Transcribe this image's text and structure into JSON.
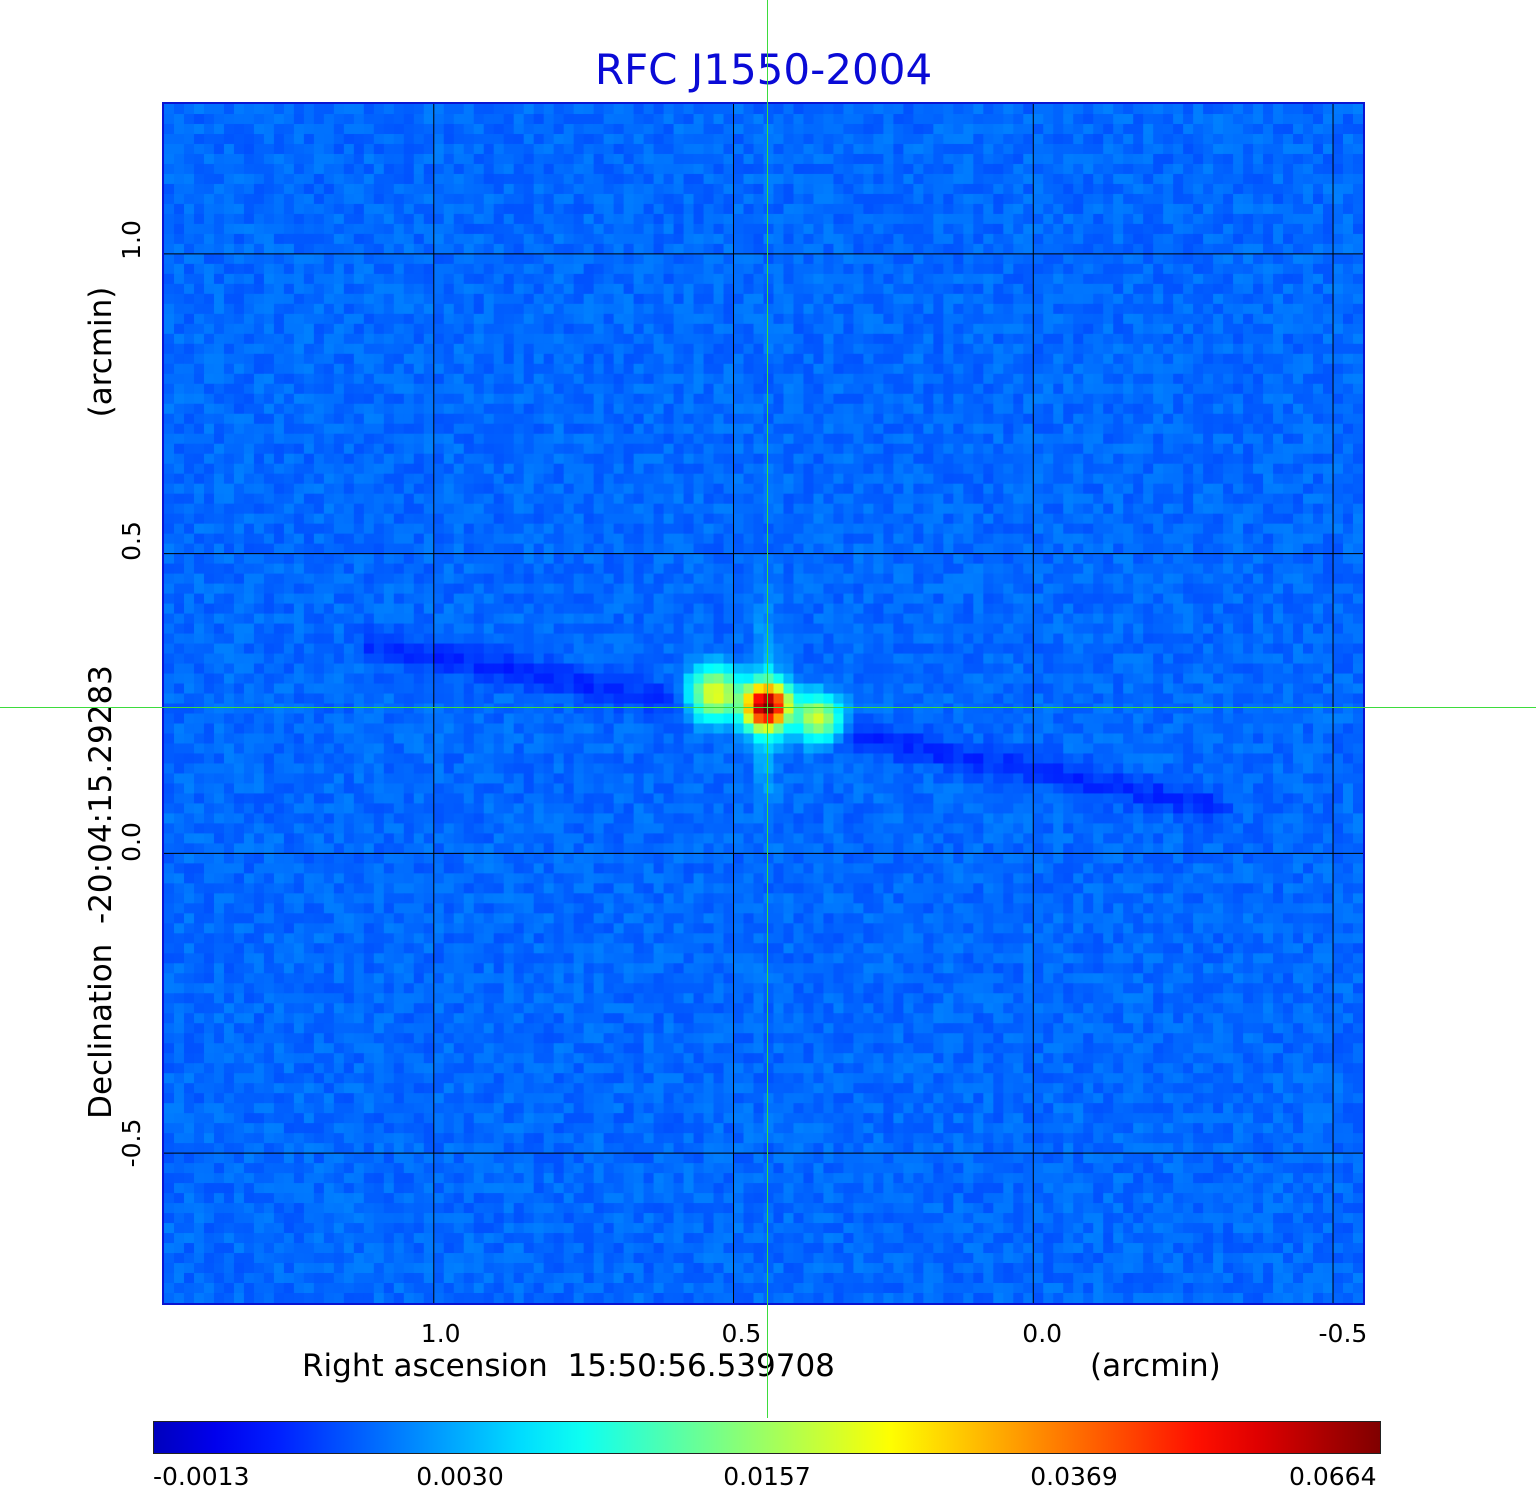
{
  "chart_data": {
    "type": "heatmap",
    "title": "RFC J1550-2004",
    "xlabel": "Right ascension  15:50:56.539708",
    "xunit": "(arcmin)",
    "ylabel": "Declination  -20:04:15.29283",
    "yunit": "(arcmin)",
    "xlim": [
      1.45,
      -0.55
    ],
    "ylim": [
      -0.75,
      1.25
    ],
    "xticks": [
      {
        "value": 1.0,
        "label": "1.0"
      },
      {
        "value": 0.5,
        "label": "0.5"
      },
      {
        "value": 0.0,
        "label": "0.0"
      },
      {
        "value": -0.5,
        "label": "-0.5"
      }
    ],
    "yticks": [
      {
        "value": 1.0,
        "label": "1.0"
      },
      {
        "value": 0.5,
        "label": "0.5"
      },
      {
        "value": 0.0,
        "label": "0.0"
      },
      {
        "value": -0.5,
        "label": "-0.5"
      }
    ],
    "grid": true,
    "grid_color": "#000000",
    "crosshair": {
      "x": 0.445,
      "y": 0.245,
      "color": "#3ddc3d"
    },
    "colormap": "jet",
    "colorbar_ticks": [
      "-0.0013",
      "0.0030",
      "0.0157",
      "0.0369",
      "0.0664"
    ],
    "colorbar_range": [
      -0.0013,
      0.0664
    ],
    "background_level": 0.0008,
    "sources": [
      {
        "x": 0.445,
        "y": 0.245,
        "peak": 0.0664,
        "sigma": 0.022
      },
      {
        "x": 0.53,
        "y": 0.265,
        "peak": 0.02,
        "sigma": 0.025
      },
      {
        "x": 0.36,
        "y": 0.225,
        "peak": 0.018,
        "sigma": 0.022
      }
    ],
    "negative_streak": {
      "from": [
        1.1,
        0.35
      ],
      "to": [
        -0.3,
        0.08
      ],
      "depth": -0.0012
    }
  }
}
